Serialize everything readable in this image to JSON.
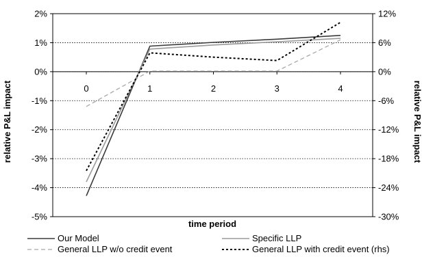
{
  "chart_data": {
    "type": "line",
    "title": "",
    "xlabel": "time period",
    "ylabel_left": "relative P&L impact",
    "ylabel_right": "relative P&L impact",
    "x": [
      0,
      1,
      2,
      3,
      4
    ],
    "x_tick_labels": [
      "0",
      "1",
      "2",
      "3",
      "4"
    ],
    "ylim_left": [
      -5,
      2
    ],
    "ylim_right": [
      -30,
      12
    ],
    "y_ticks_left": [
      "2%",
      "1%",
      "0%",
      "-1%",
      "-2%",
      "-3%",
      "-4%",
      "-5%"
    ],
    "y_ticks_right": [
      "12%",
      "6%",
      "0%",
      "-6%",
      "-12%",
      "-18%",
      "-24%",
      "-30%"
    ],
    "y_tick_values_left": [
      2,
      1,
      0,
      -1,
      -2,
      -3,
      -4,
      -5
    ],
    "y_tick_values_right": [
      12,
      6,
      0,
      -6,
      -12,
      -18,
      -24,
      -30
    ],
    "grid": "horizontal-dotted",
    "legend_position": "bottom",
    "series": [
      {
        "name": "Our Model",
        "axis": "left",
        "color": "#3a3a3a",
        "dash": "solid",
        "values": [
          -4.28,
          0.88,
          1.01,
          1.12,
          1.25
        ]
      },
      {
        "name": "Specific LLP",
        "axis": "left",
        "color": "#9a9a9a",
        "dash": "solid",
        "values": [
          -3.8,
          0.78,
          0.92,
          1.03,
          1.15
        ]
      },
      {
        "name": "General LLP w/o credit event",
        "axis": "left",
        "color": "#a8a8a8",
        "dash": "dashed",
        "values": [
          -1.2,
          0.02,
          0.02,
          0.02,
          1.1
        ]
      },
      {
        "name": "General LLP with credit event (rhs)",
        "axis": "right",
        "color": "#000000",
        "dash": "dotted",
        "values": [
          -20.5,
          3.9,
          3.0,
          2.3,
          10.2
        ]
      }
    ]
  }
}
